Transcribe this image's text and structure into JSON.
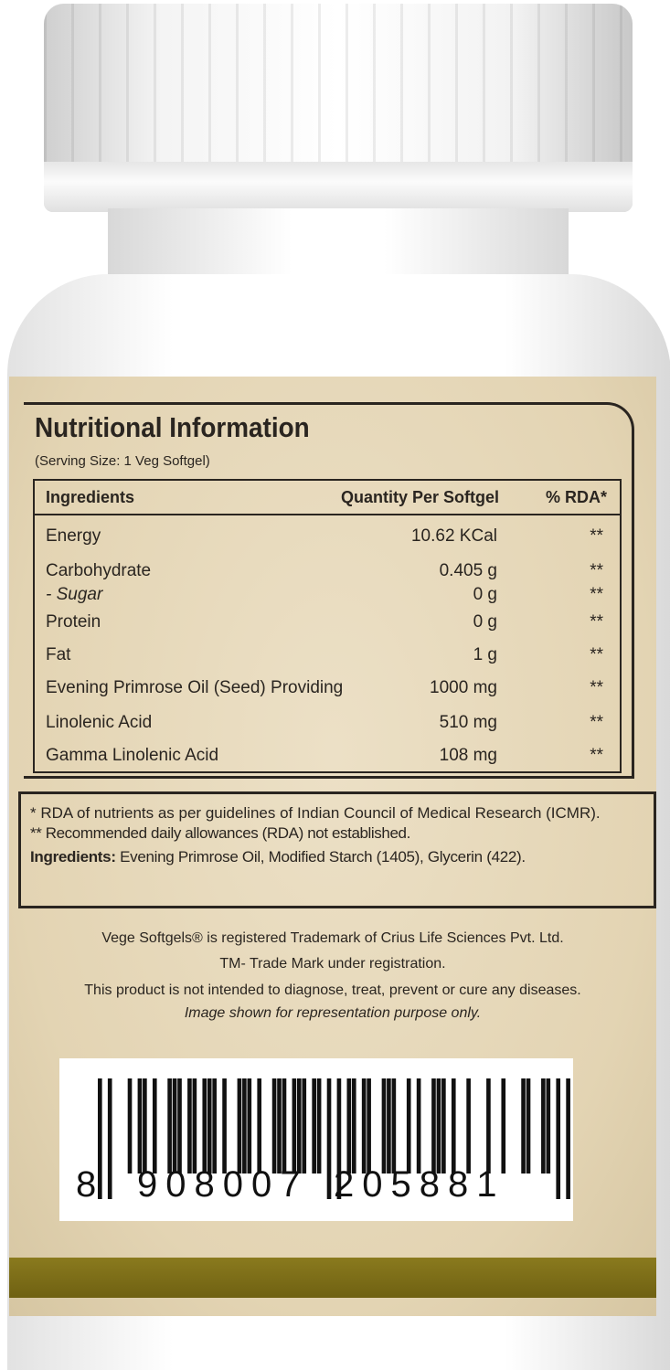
{
  "label": {
    "title": "Nutritional Information",
    "serving": "(Serving Size: 1 Veg Softgel)",
    "headers": [
      "Ingredients",
      "Quantity Per Softgel",
      "% RDA*"
    ],
    "rows": [
      {
        "name": "Energy",
        "qty": "10.62 KCal",
        "rda": "**"
      },
      {
        "name": "Carbohydrate",
        "qty": "0.405 g",
        "rda": "**"
      },
      {
        "name": "- Sugar",
        "qty": "0 g",
        "rda": "**"
      },
      {
        "name": "Protein",
        "qty": "0 g",
        "rda": "**"
      },
      {
        "name": "Fat",
        "qty": "1 g",
        "rda": "**"
      },
      {
        "name": "Evening Primrose Oil (Seed) Providing",
        "qty": "1000 mg",
        "rda": "**"
      },
      {
        "name": "Linolenic Acid",
        "qty": "510 mg",
        "rda": "**"
      },
      {
        "name": "Gamma Linolenic Acid",
        "qty": "108 mg",
        "rda": "**"
      }
    ],
    "footnote1": "* RDA of nutrients as per guidelines of Indian Council of Medical Research (ICMR).",
    "footnote2": "** Recommended daily allowances (RDA) not established.",
    "ingredients_label": "Ingredients:",
    "ingredients": "Evening Primrose Oil,  Modified Starch (1405), Glycerin (422).",
    "trademark": "Vege Softgels® is registered Trademark of Crius Life Sciences Pvt. Ltd.",
    "tm": "TM- Trade Mark under registration.",
    "disclaimer": "This product is not intended to diagnose, treat, prevent or cure any diseases.",
    "representation": "Image shown for representation purpose only.",
    "barcode": "8908007205881",
    "barcode_first": "8",
    "barcode_left": "908007",
    "barcode_right": "205881"
  },
  "colors": {
    "label": "#e6d8b8",
    "band": "#7d6e18",
    "ink": "#2a2520"
  }
}
